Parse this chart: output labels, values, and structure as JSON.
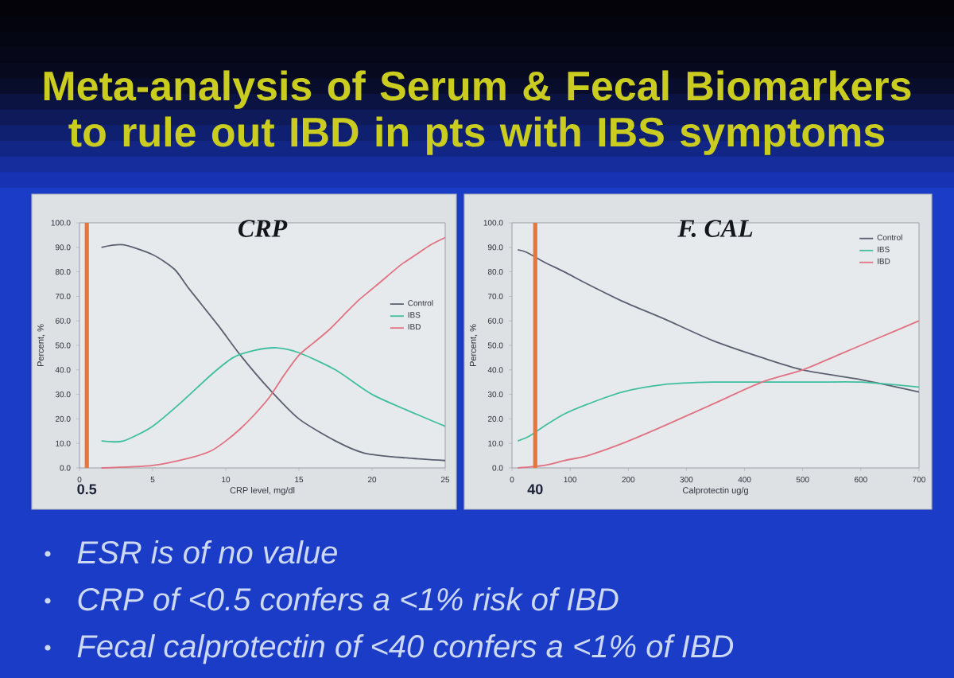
{
  "chart_data": [
    {
      "type": "other",
      "title": "Meta-analysis of Serum & Fecal Biomarkers to rule out IBD in pts with IBS symptoms"
    },
    {
      "type": "line",
      "title": "CRP",
      "xlabel": "CRP level, mg/dl",
      "ylabel": "Percent, %",
      "xlim": [
        0,
        25
      ],
      "ylim": [
        0,
        100
      ],
      "xticks": [
        0,
        5,
        10,
        15,
        20,
        25
      ],
      "yticks": [
        {
          "value": 0,
          "label": "0.0"
        },
        {
          "value": 10,
          "label": "10.0"
        },
        {
          "value": 20,
          "label": "20.0"
        },
        {
          "value": 30,
          "label": "30.0"
        },
        {
          "value": 40,
          "label": "40.0"
        },
        {
          "value": 50,
          "label": "50.0"
        },
        {
          "value": 60,
          "label": "60.0"
        },
        {
          "value": 70,
          "label": "70.0"
        },
        {
          "value": 80,
          "label": "80.0"
        },
        {
          "value": 90,
          "label": "90.0"
        },
        {
          "value": 100,
          "label": "100.0"
        }
      ],
      "legend": "right",
      "series": [
        {
          "name": "Control",
          "color": "#5b6070",
          "x": [
            1.5,
            3,
            5,
            6.5,
            7.5,
            9.5,
            11,
            13,
            15,
            17.5,
            19.5,
            22.5,
            25
          ],
          "values": [
            90,
            91,
            87,
            81,
            73,
            58,
            46,
            32,
            20,
            11,
            6,
            4,
            3
          ]
        },
        {
          "name": "IBS",
          "color": "#3fbf9f",
          "x": [
            1.5,
            3,
            5,
            7,
            9,
            10.5,
            12,
            13.5,
            15,
            17.5,
            20,
            23,
            25
          ],
          "values": [
            11,
            11,
            17,
            27,
            38,
            45,
            48,
            49,
            47,
            40,
            30,
            22,
            17
          ]
        },
        {
          "name": "IBD",
          "color": "#e07282",
          "x": [
            1.5,
            5,
            7.5,
            9,
            10,
            11,
            12,
            13,
            14,
            15,
            16,
            17,
            18,
            19,
            20,
            21,
            22,
            23,
            24,
            25
          ],
          "values": [
            0,
            1,
            4,
            7,
            11,
            16,
            22,
            29,
            38,
            46,
            51,
            56,
            62,
            68,
            73,
            78,
            83,
            87,
            91,
            94
          ]
        }
      ],
      "ref_lines": [
        {
          "axis": "x",
          "value": 0.5,
          "label": "0.5",
          "color": "#e8763b"
        }
      ]
    },
    {
      "type": "line",
      "title": "F. CAL",
      "xlabel": "Calprotectin ug/g",
      "ylabel": "Percent, %",
      "xlim": [
        0,
        700
      ],
      "ylim": [
        0,
        100
      ],
      "xticks": [
        0,
        100,
        200,
        300,
        400,
        500,
        600,
        700
      ],
      "yticks": [
        {
          "value": 0,
          "label": "0.0"
        },
        {
          "value": 10,
          "label": "10.0"
        },
        {
          "value": 20,
          "label": "20.0"
        },
        {
          "value": 30,
          "label": "30.0"
        },
        {
          "value": 40,
          "label": "40.0"
        },
        {
          "value": 50,
          "label": "50.0"
        },
        {
          "value": 60,
          "label": "60.0"
        },
        {
          "value": 70,
          "label": "70.0"
        },
        {
          "value": 80,
          "label": "80.0"
        },
        {
          "value": 90,
          "label": "90.0"
        },
        {
          "value": 100,
          "label": "100.0"
        }
      ],
      "legend": "top right",
      "series": [
        {
          "name": "Control",
          "color": "#5b6070",
          "x": [
            10,
            25,
            55,
            90,
            130,
            190,
            260,
            345,
            430,
            500,
            600,
            700
          ],
          "values": [
            89,
            88,
            84,
            80,
            75,
            68,
            61,
            52,
            45,
            40,
            36,
            31
          ]
        },
        {
          "name": "IBS",
          "color": "#3fbf9f",
          "x": [
            10,
            30,
            55,
            90,
            130,
            190,
            260,
            345,
            430,
            520,
            600,
            700
          ],
          "values": [
            11,
            13,
            17,
            22,
            26,
            31,
            34,
            35,
            35,
            35,
            35,
            33
          ]
        },
        {
          "name": "IBD",
          "color": "#e07282",
          "x": [
            10,
            55,
            90,
            130,
            190,
            260,
            345,
            430,
            500,
            560,
            630,
            700
          ],
          "values": [
            0,
            1,
            3,
            5,
            10,
            17,
            26,
            35,
            40,
            46,
            53,
            60
          ]
        }
      ],
      "ref_lines": [
        {
          "axis": "x",
          "value": 40,
          "label": "40",
          "color": "#e8763b"
        }
      ]
    },
    {
      "type": "other",
      "annotations": [
        "ESR is of no value",
        "CRP of <0.5 confers a <1% risk of IBD",
        "Fecal calprotectin of <40 confers a <1% of IBD"
      ]
    }
  ]
}
